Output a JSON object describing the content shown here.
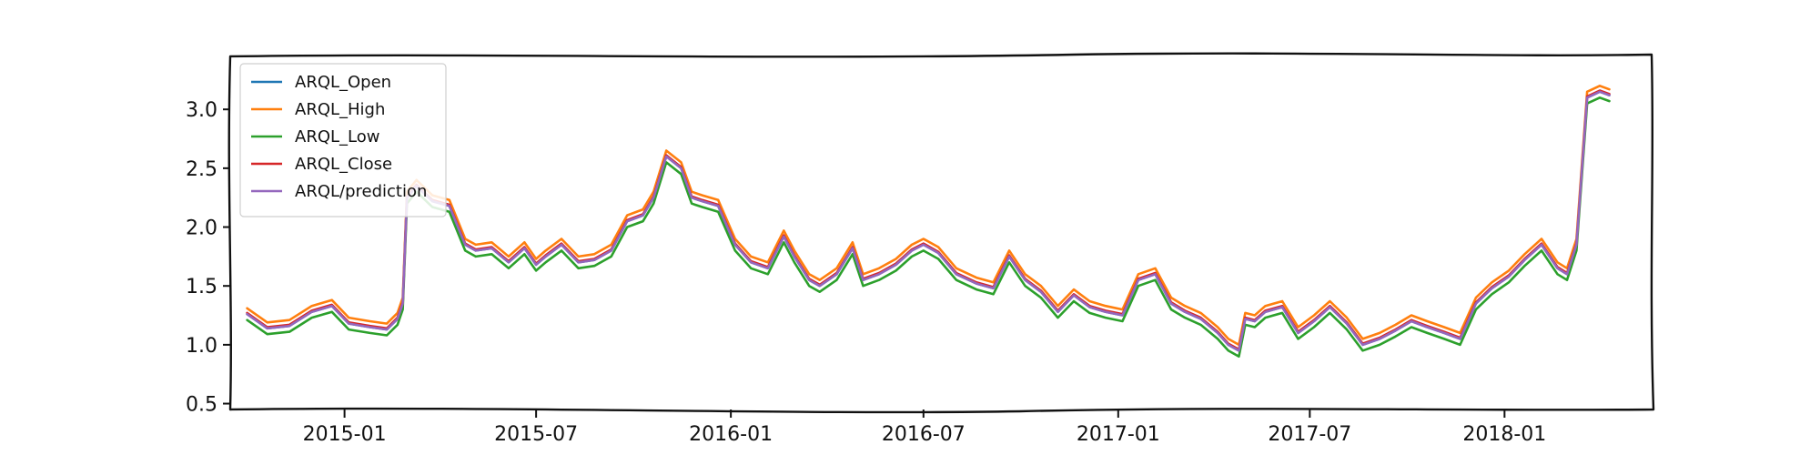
{
  "chart_data": {
    "type": "line",
    "title": "",
    "xlabel": "",
    "ylabel": "",
    "xlim": [
      "2014-09-15",
      "2018-05-20"
    ],
    "ylim": [
      0.45,
      3.45
    ],
    "grid": false,
    "legend_position": "top-left",
    "y_ticks": [
      0.5,
      1.0,
      1.5,
      2.0,
      2.5,
      3.0
    ],
    "y_tick_labels": [
      "0.5",
      "1.0",
      "1.5",
      "2.0",
      "2.5",
      "3.0"
    ],
    "x_ticks": [
      "2015-01-01",
      "2015-07-01",
      "2016-01-01",
      "2016-07-01",
      "2017-01-01",
      "2017-07-01",
      "2018-01-01"
    ],
    "x_tick_labels": [
      "2015-01",
      "2015-07",
      "2016-01",
      "2016-07",
      "2017-01",
      "2017-07",
      "2018-01"
    ],
    "base_series": {
      "name": "ARQL_Close",
      "x": [
        "2014-10-01",
        "2014-10-20",
        "2014-11-10",
        "2014-12-01",
        "2014-12-20",
        "2015-01-05",
        "2015-01-25",
        "2015-02-10",
        "2015-02-20",
        "2015-02-25",
        "2015-03-01",
        "2015-03-10",
        "2015-03-25",
        "2015-04-10",
        "2015-04-25",
        "2015-05-05",
        "2015-05-20",
        "2015-06-05",
        "2015-06-20",
        "2015-07-01",
        "2015-07-10",
        "2015-07-25",
        "2015-08-10",
        "2015-08-25",
        "2015-09-10",
        "2015-09-25",
        "2015-10-10",
        "2015-10-20",
        "2015-11-01",
        "2015-11-15",
        "2015-11-25",
        "2015-12-05",
        "2015-12-20",
        "2016-01-05",
        "2016-01-20",
        "2016-02-05",
        "2016-02-20",
        "2016-03-01",
        "2016-03-15",
        "2016-03-25",
        "2016-04-10",
        "2016-04-25",
        "2016-05-05",
        "2016-05-20",
        "2016-06-05",
        "2016-06-20",
        "2016-07-01",
        "2016-07-15",
        "2016-08-01",
        "2016-08-20",
        "2016-09-05",
        "2016-09-20",
        "2016-10-05",
        "2016-10-20",
        "2016-11-05",
        "2016-11-20",
        "2016-12-05",
        "2016-12-20",
        "2017-01-05",
        "2017-01-20",
        "2017-02-05",
        "2017-02-20",
        "2017-03-05",
        "2017-03-20",
        "2017-04-05",
        "2017-04-15",
        "2017-04-25",
        "2017-05-01",
        "2017-05-10",
        "2017-05-20",
        "2017-06-05",
        "2017-06-20",
        "2017-07-05",
        "2017-07-20",
        "2017-08-05",
        "2017-08-20",
        "2017-09-05",
        "2017-09-20",
        "2017-10-05",
        "2017-10-20",
        "2017-11-05",
        "2017-11-20",
        "2017-12-05",
        "2017-12-20",
        "2018-01-05",
        "2018-01-20",
        "2018-02-05",
        "2018-02-20",
        "2018-03-01",
        "2018-03-10",
        "2018-03-20",
        "2018-04-01",
        "2018-04-10"
      ],
      "values": [
        1.26,
        1.14,
        1.16,
        1.28,
        1.33,
        1.18,
        1.15,
        1.13,
        1.22,
        1.35,
        2.25,
        2.35,
        2.22,
        2.18,
        1.85,
        1.8,
        1.82,
        1.7,
        1.82,
        1.68,
        1.75,
        1.85,
        1.7,
        1.72,
        1.8,
        2.05,
        2.1,
        2.25,
        2.6,
        2.5,
        2.25,
        2.22,
        2.18,
        1.85,
        1.7,
        1.65,
        1.92,
        1.75,
        1.55,
        1.5,
        1.6,
        1.82,
        1.55,
        1.6,
        1.68,
        1.8,
        1.85,
        1.78,
        1.6,
        1.52,
        1.48,
        1.75,
        1.55,
        1.45,
        1.28,
        1.42,
        1.32,
        1.28,
        1.25,
        1.55,
        1.6,
        1.35,
        1.28,
        1.22,
        1.1,
        1.0,
        0.95,
        1.22,
        1.2,
        1.28,
        1.32,
        1.1,
        1.2,
        1.32,
        1.18,
        1.0,
        1.05,
        1.12,
        1.2,
        1.15,
        1.1,
        1.05,
        1.35,
        1.48,
        1.58,
        1.72,
        1.85,
        1.65,
        1.6,
        1.85,
        3.1,
        3.15,
        3.12
      ]
    },
    "series": [
      {
        "name": "ARQL_Open",
        "color": "#1f77b4",
        "offset": 0.0
      },
      {
        "name": "ARQL_High",
        "color": "#ff7f0e",
        "offset": 0.05
      },
      {
        "name": "ARQL_Low",
        "color": "#2ca02c",
        "offset": -0.05
      },
      {
        "name": "ARQL_Close",
        "color": "#d62728",
        "offset": 0.01
      },
      {
        "name": "ARQL/prediction",
        "color": "#9467bd",
        "offset": 0.0
      }
    ]
  }
}
